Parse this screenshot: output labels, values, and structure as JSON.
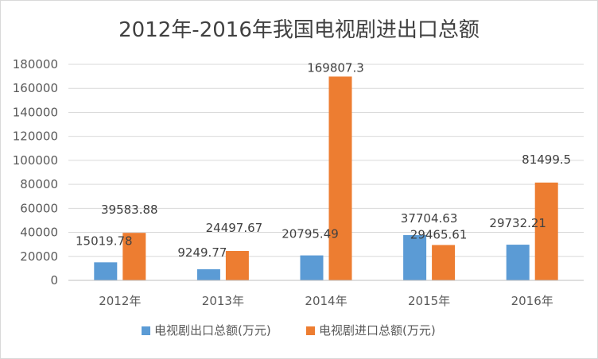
{
  "chart_data": {
    "type": "bar",
    "title": "2012年-2016年我国电视剧进出口总额",
    "categories": [
      "2012年",
      "2013年",
      "2014年",
      "2015年",
      "2016年"
    ],
    "series": [
      {
        "name": "电视剧出口总额(万元)",
        "color": "#5B9BD5",
        "values": [
          15019.78,
          9249.77,
          20795.49,
          37704.63,
          29732.21
        ],
        "labels": [
          "15019.78",
          "9249.77",
          "20795.49",
          "37704.63",
          "29732.21"
        ]
      },
      {
        "name": "电视剧进口总额(万元)",
        "color": "#ED7D31",
        "values": [
          39583.88,
          24497.67,
          169807.3,
          29465.61,
          81499.5
        ],
        "labels": [
          "39583.88",
          "24497.67",
          "169807.3",
          "29465.61",
          "81499.5"
        ]
      }
    ],
    "ylim": [
      0,
      180000
    ],
    "yticks": [
      0,
      20000,
      40000,
      60000,
      80000,
      100000,
      120000,
      140000,
      160000,
      180000
    ],
    "xlabel": "",
    "ylabel": "",
    "grid": true,
    "legend": "bottom"
  }
}
